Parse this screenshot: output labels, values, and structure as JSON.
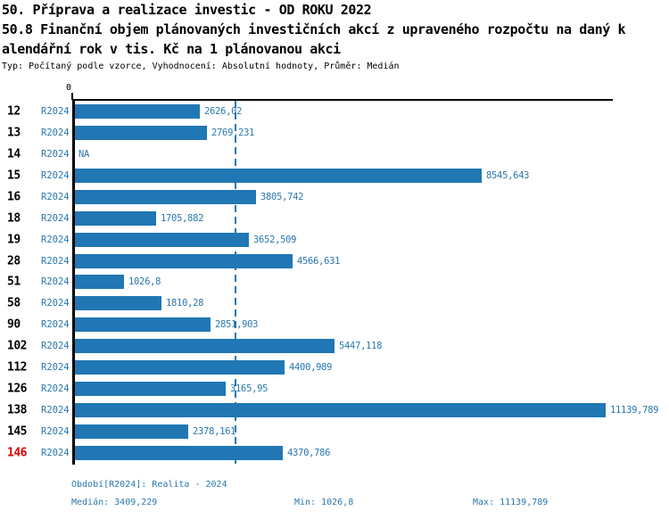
{
  "header": {
    "title_line1": "50. Příprava a realizace investic - OD ROKU 2022",
    "title_line2": "50.8 Finanční objem plánovaných investičních akcí z upraveného rozpočtu na daný k",
    "title_line3": "alendářní rok v tis. Kč na 1 plánovanou akci",
    "subtitle": "Typ: Počítaný podle vzorce, Vyhodnocení: Absolutní hodnoty, Průměr: Medián"
  },
  "chart_data": {
    "type": "bar",
    "orientation": "horizontal",
    "title": "50.8 Finanční objem plánovaných investičních akcí z upraveného rozpočtu na daný kalendářní rok v tis. Kč na 1 plánovanou akci",
    "series_label": "R2024",
    "categories": [
      "12",
      "13",
      "14",
      "15",
      "16",
      "18",
      "19",
      "28",
      "51",
      "58",
      "90",
      "102",
      "112",
      "126",
      "138",
      "145",
      "146"
    ],
    "values": [
      2626.02,
      2769.231,
      null,
      8545.643,
      3805.742,
      1705.882,
      3652.509,
      4566.631,
      1026.8,
      1810.28,
      2851.903,
      5447.118,
      4400.989,
      3165.95,
      11139.789,
      2378.161,
      4370.786
    ],
    "value_labels": [
      "2626,02",
      "2769,231",
      "NA",
      "8545,643",
      "3805,742",
      "1705,882",
      "3652,509",
      "4566,631",
      "1026,8",
      "1810,28",
      "2851,903",
      "5447,118",
      "4400,989",
      "3165,95",
      "11139,789",
      "2378,161",
      "4370,786"
    ],
    "na_label": "NA",
    "highlighted_category": "146",
    "axis_zero_label": "0",
    "xlim": [
      0,
      11300
    ],
    "median_value": 3409.229,
    "min_value": 1026.8,
    "max_value": 11139.789,
    "legend_position": "none",
    "grid": false
  },
  "footer": {
    "period": "Období[R2024]: Realita - 2024",
    "median": "Medián: 3409,229",
    "min": "Min: 1026,8",
    "max": "Max: 11139,789"
  },
  "colors": {
    "bar": "#2077b4",
    "blue_text": "#2b78ad",
    "highlight_red": "#dd0000",
    "axis_black": "#000000",
    "background": "#ffffff"
  }
}
